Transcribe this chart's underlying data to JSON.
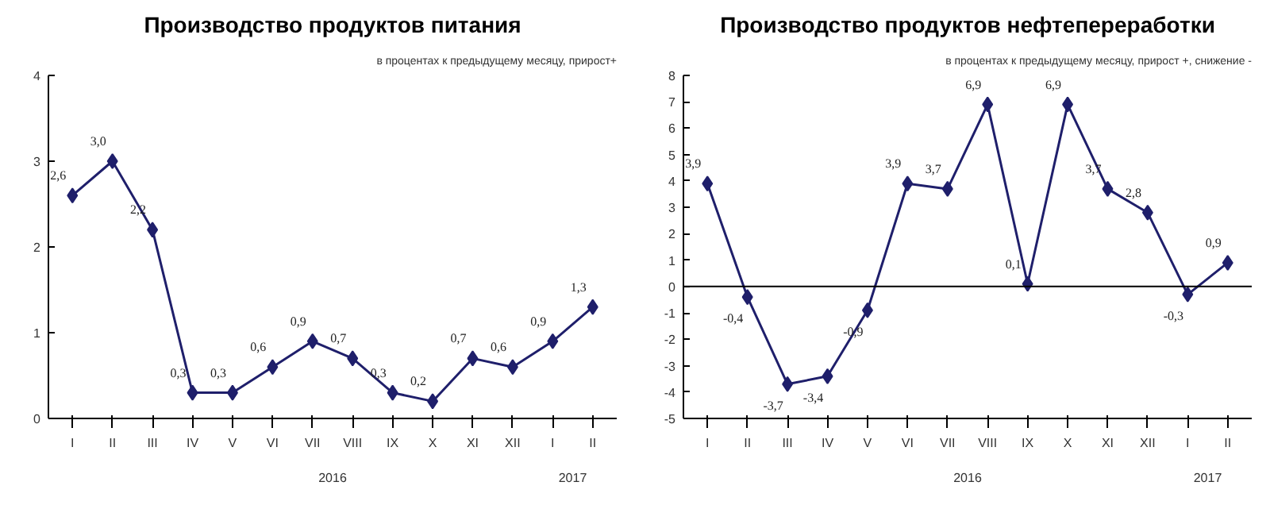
{
  "chart_data": [
    {
      "type": "line",
      "title": "Производство продуктов питания",
      "subtitle": "в процентах к предыдущему месяцу, прирост+",
      "categories": [
        "I",
        "II",
        "III",
        "IV",
        "V",
        "VI",
        "VII",
        "VIII",
        "IX",
        "X",
        "XI",
        "XII",
        "I",
        "II"
      ],
      "series": [
        {
          "color": "#1f1f6b",
          "values": [
            2.6,
            3.0,
            2.2,
            0.3,
            0.3,
            0.6,
            0.9,
            0.7,
            0.3,
            0.2,
            0.7,
            0.6,
            0.9,
            1.3
          ],
          "value_labels": [
            "2,6",
            "3,0",
            "2,2",
            "0,3",
            "0,3",
            "0,6",
            "0,9",
            "0,7",
            "0,3",
            "0,2",
            "0,7",
            "0,6",
            "0,9",
            "1,3"
          ]
        }
      ],
      "ylim": [
        0,
        4
      ],
      "yticks": [
        0,
        1,
        2,
        3,
        4
      ],
      "grid": false,
      "marker": "diamond",
      "line_style": "solid",
      "annotations": [
        "2016",
        "2017"
      ]
    },
    {
      "type": "line",
      "title": "Производство продуктов нефтепереработки",
      "subtitle": "в процентах к предыдущему месяцу, прирост +, снижение -",
      "categories": [
        "I",
        "II",
        "III",
        "IV",
        "V",
        "VI",
        "VII",
        "VIII",
        "IX",
        "X",
        "XI",
        "XII",
        "I",
        "II"
      ],
      "series": [
        {
          "color": "#1f1f6b",
          "values": [
            3.9,
            -0.4,
            -3.7,
            -3.4,
            -0.9,
            3.9,
            3.7,
            6.9,
            0.1,
            6.9,
            3.7,
            2.8,
            -0.3,
            0.9
          ],
          "value_labels": [
            "3,9",
            "-0,4",
            "-3,7",
            "-3,4",
            "-0,9",
            "3,9",
            "3,7",
            "6,9",
            "0,1",
            "6,9",
            "3,7",
            "2,8",
            "-0,3",
            "0,9"
          ]
        }
      ],
      "ylim": [
        -5,
        8
      ],
      "yticks": [
        -5,
        -4,
        -3,
        -2,
        -1,
        0,
        1,
        2,
        3,
        4,
        5,
        6,
        7,
        8
      ],
      "grid": false,
      "marker": "diamond",
      "line_style": "solid",
      "ref_lines": [
        {
          "axis": "y",
          "value": 0,
          "color": "#000000"
        }
      ],
      "annotations": [
        "2016",
        "2017"
      ]
    }
  ]
}
